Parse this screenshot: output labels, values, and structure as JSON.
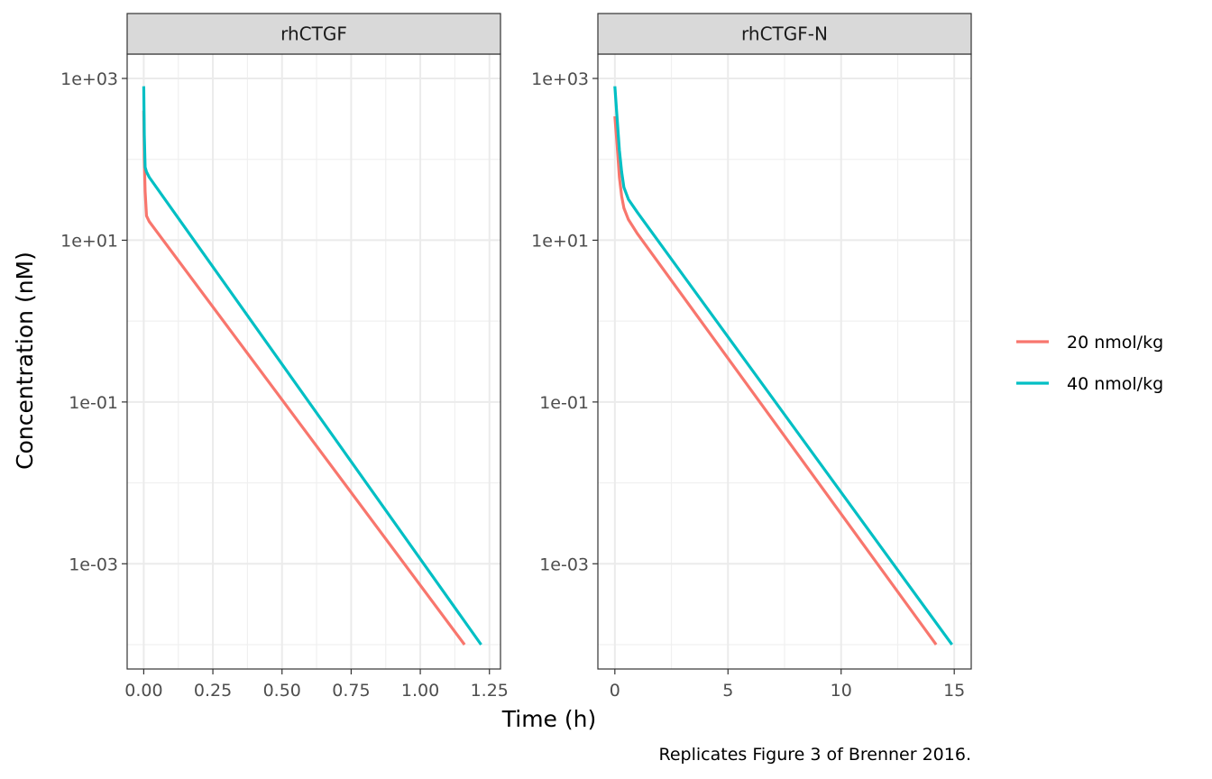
{
  "chart_data": {
    "type": "line",
    "y_scale": "log10",
    "ylabel": "Concentration (nM)",
    "xlabel": "Time (h)",
    "caption": "Replicates Figure 3 of Brenner 2016.",
    "ylim": [
      5e-05,
      2000
    ],
    "y_ticks": [
      {
        "value": 1000,
        "label": "1e+03"
      },
      {
        "value": 10,
        "label": "1e+01"
      },
      {
        "value": 0.1,
        "label": "1e-01"
      },
      {
        "value": 0.001,
        "label": "1e-03"
      }
    ],
    "legend": {
      "position": "right",
      "entries": [
        {
          "name": "20 nmol/kg",
          "color": "#F8766D"
        },
        {
          "name": "40 nmol/kg",
          "color": "#00BFC4"
        }
      ]
    },
    "grid": true,
    "facets": [
      {
        "title": "rhCTGF",
        "xlim": [
          -0.06,
          1.29
        ],
        "x_ticks": [
          {
            "value": 0,
            "label": "0.00"
          },
          {
            "value": 0.25,
            "label": "0.25"
          },
          {
            "value": 0.5,
            "label": "0.50"
          },
          {
            "value": 0.75,
            "label": "0.75"
          },
          {
            "value": 1.0,
            "label": "1.00"
          },
          {
            "value": 1.25,
            "label": "1.25"
          }
        ],
        "series": [
          {
            "name": "20 nmol/kg",
            "x": [
              0,
              0.002,
              0.005,
              0.01,
              0.02,
              1.16
            ],
            "y": [
              400,
              100,
              40,
              20,
              17,
              0.0001
            ]
          },
          {
            "name": "40 nmol/kg",
            "x": [
              0,
              0.002,
              0.005,
              0.01,
              0.02,
              1.22
            ],
            "y": [
              800,
              200,
              80,
              70,
              60,
              0.0001
            ]
          }
        ]
      },
      {
        "title": "rhCTGF-N",
        "xlim": [
          -0.75,
          15.75
        ],
        "x_ticks": [
          {
            "value": 0,
            "label": "0"
          },
          {
            "value": 5,
            "label": "5"
          },
          {
            "value": 10,
            "label": "10"
          },
          {
            "value": 15,
            "label": "15"
          }
        ],
        "series": [
          {
            "name": "20 nmol/kg",
            "x": [
              0,
              0.1,
              0.2,
              0.3,
              0.4,
              0.6,
              1.0,
              14.2
            ],
            "y": [
              340,
              150,
              60,
              35,
              25,
              18,
              12,
              0.0001
            ]
          },
          {
            "name": "40 nmol/kg",
            "x": [
              0,
              0.1,
              0.2,
              0.3,
              0.4,
              0.6,
              1.0,
              14.9
            ],
            "y": [
              800,
              320,
              130,
              70,
              45,
              32,
              22,
              0.0001
            ]
          }
        ]
      }
    ]
  }
}
